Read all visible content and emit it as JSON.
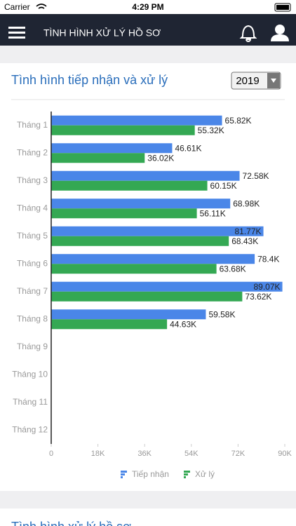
{
  "status_bar": {
    "carrier": "Carrier",
    "time": "4:29 PM"
  },
  "header": {
    "title": "TÌNH HÌNH XỬ LÝ HỒ SƠ"
  },
  "card": {
    "title": "Tình hình tiếp nhận và xử lý",
    "year": "2019"
  },
  "next_card": {
    "title": "Tình hình xử lý hồ sơ"
  },
  "chart_data": {
    "type": "hbar",
    "categories": [
      "Tháng 1",
      "Tháng 2",
      "Tháng 3",
      "Tháng 4",
      "Tháng 5",
      "Tháng 6",
      "Tháng 7",
      "Tháng 8",
      "Tháng 9",
      "Tháng 10",
      "Tháng 11",
      "Tháng 12"
    ],
    "series": [
      {
        "name": "Tiếp nhận",
        "color": "#4a86e8",
        "values": [
          65820,
          46610,
          72580,
          68980,
          81770,
          78400,
          89070,
          59580,
          null,
          null,
          null,
          null
        ],
        "value_labels": [
          "65.82K",
          "46.61K",
          "72.58K",
          "68.98K",
          "81.77K",
          "78.4K",
          "89.07K",
          "59.58K",
          null,
          null,
          null,
          null
        ]
      },
      {
        "name": "Xử lý",
        "color": "#34a853",
        "values": [
          55320,
          36020,
          60150,
          56110,
          68430,
          63680,
          73620,
          44630,
          null,
          null,
          null,
          null
        ],
        "value_labels": [
          "55.32K",
          "36.02K",
          "60.15K",
          "56.11K",
          "68.43K",
          "63.68K",
          "73.62K",
          "44.63K",
          null,
          null,
          null,
          null
        ]
      }
    ],
    "xlim": [
      0,
      90000
    ],
    "xticks": [
      0,
      {
        "value": 18000,
        "label": "18K"
      },
      {
        "value": 36000,
        "label": "36K"
      },
      {
        "value": 54000,
        "label": "54K"
      },
      {
        "value": 72000,
        "label": "72K"
      },
      {
        "value": 90000,
        "label": "90K"
      }
    ],
    "legend": "bottom"
  }
}
